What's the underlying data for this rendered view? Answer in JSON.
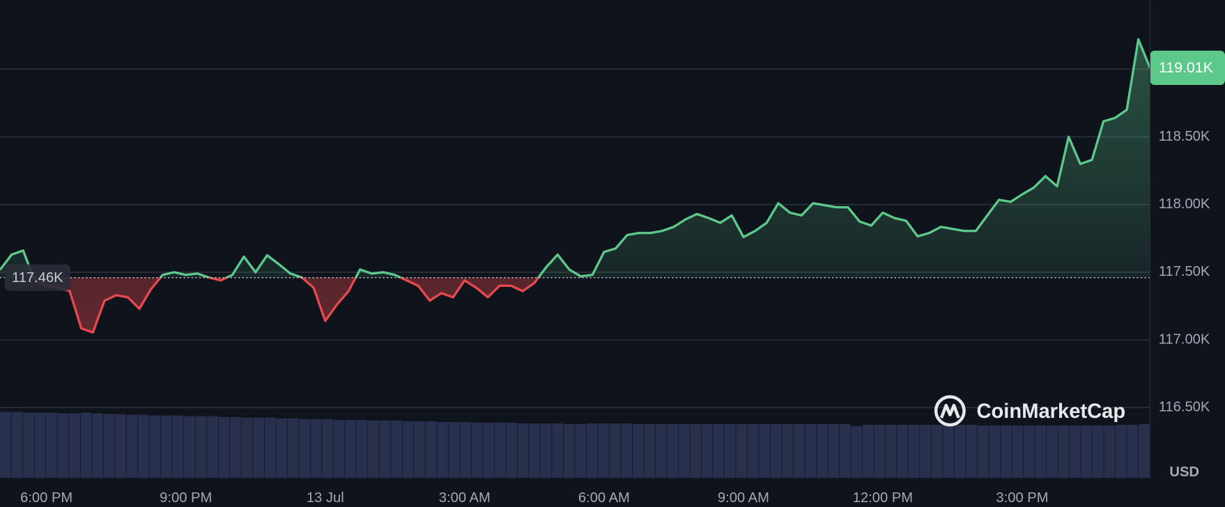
{
  "chart_data": {
    "type": "line",
    "categories": [
      null,
      null,
      null,
      null,
      "6:00 PM",
      null,
      null,
      null,
      null,
      null,
      null,
      null,
      null,
      null,
      null,
      null,
      "9:00 PM",
      null,
      null,
      null,
      null,
      null,
      null,
      null,
      null,
      null,
      null,
      null,
      "13 Jul",
      null,
      null,
      null,
      null,
      null,
      null,
      null,
      null,
      null,
      null,
      null,
      "3:00 AM",
      null,
      null,
      null,
      null,
      null,
      null,
      null,
      null,
      null,
      null,
      null,
      "6:00 AM",
      null,
      null,
      null,
      null,
      null,
      null,
      null,
      null,
      null,
      null,
      null,
      "9:00 AM",
      null,
      null,
      null,
      null,
      null,
      null,
      null,
      null,
      null,
      null,
      null,
      "12:00 PM",
      null,
      null,
      null,
      null,
      null,
      null,
      null,
      null,
      null,
      null,
      null,
      "3:00 PM",
      null,
      null,
      null,
      null,
      null,
      null,
      null,
      null,
      null,
      null,
      null
    ],
    "values": [
      117517,
      117630,
      117660,
      117430,
      117400,
      117385,
      117360,
      117085,
      117055,
      117290,
      117330,
      117315,
      117230,
      117375,
      117480,
      117500,
      117480,
      117490,
      117460,
      117440,
      117480,
      117615,
      117500,
      117625,
      117560,
      117490,
      117460,
      117385,
      117140,
      117260,
      117360,
      117520,
      117490,
      117500,
      117480,
      117440,
      117400,
      117290,
      117345,
      117315,
      117440,
      117385,
      117315,
      117400,
      117400,
      117360,
      117420,
      117535,
      117630,
      117520,
      117470,
      117480,
      117650,
      117675,
      117775,
      117790,
      117790,
      117805,
      117835,
      117890,
      117930,
      117900,
      117865,
      117920,
      117760,
      117805,
      117865,
      118010,
      117940,
      117920,
      118010,
      117995,
      117980,
      117980,
      117875,
      117845,
      117940,
      117900,
      117880,
      117765,
      117790,
      117835,
      117820,
      117805,
      117805,
      117920,
      118035,
      118020,
      118075,
      118125,
      118210,
      118135,
      118500,
      118300,
      118330,
      118615,
      118640,
      118700,
      119220,
      119010
    ],
    "up_color": "#5cc98a",
    "down_color": "#e5484d",
    "baseline": {
      "value": 117460,
      "label": "117.46K"
    },
    "last_price": {
      "value": 119010,
      "label": "119.01K"
    },
    "ylim": [
      115980,
      119510
    ],
    "yticks": [
      {
        "value": 116500,
        "label": "116.50K"
      },
      {
        "value": 117000,
        "label": "117.00K"
      },
      {
        "value": 117500,
        "label": "117.50K"
      },
      {
        "value": 118000,
        "label": "118.00K"
      },
      {
        "value": 118500,
        "label": "118.50K"
      },
      {
        "value": 119000,
        "label": null
      }
    ],
    "grid": true,
    "y_unit": "USD",
    "volume": {
      "color": "#28304d",
      "lim": [
        0,
        100
      ],
      "values": [
        92,
        92,
        91,
        91,
        91,
        90,
        90,
        91,
        90,
        89,
        89,
        88,
        88,
        87,
        87,
        87,
        86,
        86,
        86,
        85,
        85,
        84,
        84,
        84,
        83,
        83,
        82,
        82,
        82,
        81,
        81,
        81,
        80,
        80,
        80,
        79,
        79,
        79,
        78,
        78,
        78,
        77,
        77,
        77,
        77,
        76,
        76,
        76,
        76,
        75,
        75,
        76,
        76,
        76,
        76,
        75,
        75,
        75,
        75,
        75,
        75,
        75,
        75,
        75,
        75,
        75,
        75,
        75,
        75,
        75,
        75,
        75,
        75,
        75,
        72,
        74,
        74,
        74,
        74,
        74,
        74,
        74,
        74,
        74,
        74,
        73,
        73,
        73,
        73,
        73,
        73,
        73,
        73,
        73,
        73,
        73,
        73,
        74,
        74,
        75
      ]
    },
    "watermark": "CoinMarketCap"
  }
}
